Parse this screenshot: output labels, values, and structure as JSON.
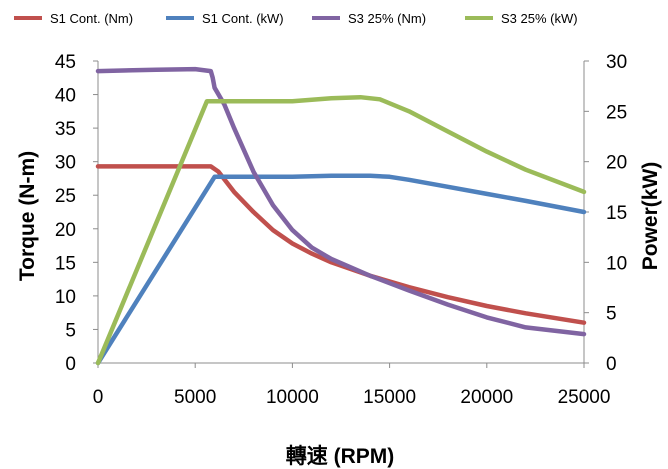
{
  "chart_data": {
    "type": "line",
    "title": "",
    "xlabel": "轉速 (RPM)",
    "ylabel": "Torque (N-m)",
    "y2label": "Power(kW)",
    "xlim": [
      0,
      25000
    ],
    "ylim": [
      0,
      45
    ],
    "y2lim": [
      0,
      30
    ],
    "x_ticks": [
      "0",
      "5000",
      "10000",
      "15000",
      "20000",
      "25000"
    ],
    "y_ticks": [
      "0",
      "5",
      "10",
      "15",
      "20",
      "25",
      "30",
      "35",
      "40",
      "45"
    ],
    "y2_ticks": [
      "0",
      "5",
      "10",
      "15",
      "20",
      "25",
      "30"
    ],
    "grid": false,
    "legend_position": "top",
    "series": [
      {
        "name": "S1 Cont. (Nm)",
        "axis": "left",
        "color": "#c0504d",
        "x": [
          0,
          5000,
          5800,
          6200,
          7000,
          8000,
          9000,
          10000,
          11000,
          12000,
          14000,
          16000,
          18000,
          20000,
          22000,
          25000
        ],
        "y": [
          29.3,
          29.3,
          29.3,
          28.5,
          25.5,
          22.5,
          19.8,
          17.8,
          16.3,
          15.0,
          13.0,
          11.3,
          9.8,
          8.5,
          7.4,
          6.0
        ]
      },
      {
        "name": "S1 Cont. (kW)",
        "axis": "right",
        "color": "#4f81bd",
        "x": [
          0,
          6000,
          8000,
          10000,
          12000,
          14000,
          15000,
          16000,
          18000,
          20000,
          22000,
          25000
        ],
        "y": [
          0,
          18.5,
          18.5,
          18.5,
          18.6,
          18.6,
          18.5,
          18.2,
          17.5,
          16.8,
          16.1,
          15.0
        ]
      },
      {
        "name": "S3 25% (Nm)",
        "axis": "left",
        "color": "#8064a2",
        "x": [
          0,
          3000,
          5000,
          5800,
          5900,
          6000,
          6100,
          6500,
          7000,
          8000,
          9000,
          10000,
          11000,
          12000,
          14000,
          16000,
          18000,
          20000,
          22000,
          25000
        ],
        "y": [
          43.5,
          43.7,
          43.8,
          43.5,
          42.5,
          41.0,
          40.5,
          38.5,
          35.0,
          28.5,
          23.5,
          19.8,
          17.2,
          15.5,
          13.0,
          10.8,
          8.7,
          6.8,
          5.3,
          4.3
        ]
      },
      {
        "name": "S3 25% (kW)",
        "axis": "right",
        "color": "#9bbb59",
        "x": [
          0,
          5600,
          6000,
          8000,
          10000,
          12000,
          13500,
          14500,
          16000,
          18000,
          20000,
          22000,
          25000
        ],
        "y": [
          0,
          26.0,
          26.0,
          26.0,
          26.0,
          26.3,
          26.4,
          26.2,
          25.0,
          23.0,
          21.0,
          19.2,
          17.0
        ]
      }
    ]
  }
}
